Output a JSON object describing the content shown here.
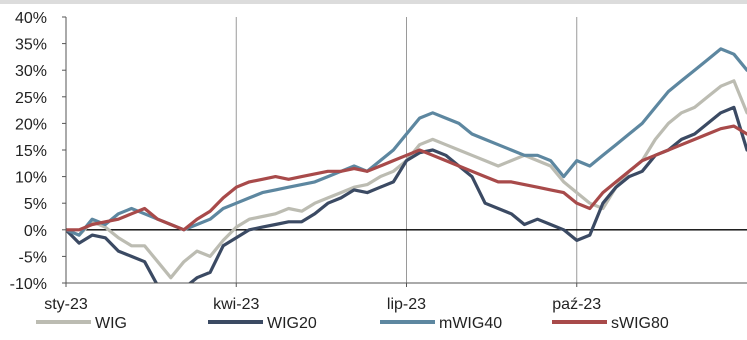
{
  "chart_data": {
    "type": "line",
    "title": "",
    "xlabel": "",
    "ylabel": "",
    "ylim": [
      -10,
      40
    ],
    "y_ticks": [
      -10,
      -5,
      0,
      5,
      10,
      15,
      20,
      25,
      30,
      35,
      40
    ],
    "y_tick_labels": [
      "-10%",
      "-5%",
      "0%",
      "5%",
      "10%",
      "15%",
      "20%",
      "25%",
      "30%",
      "35%",
      "40%"
    ],
    "x_range": [
      0,
      52
    ],
    "x_ticks": [
      {
        "x": 0,
        "label": "sty-23"
      },
      {
        "x": 13,
        "label": "kwi-23"
      },
      {
        "x": 26,
        "label": "lip-23"
      },
      {
        "x": 39,
        "label": "paź-23"
      }
    ],
    "grid": "vertical at x ticks",
    "legend_position": "bottom",
    "zero_line": true,
    "series": [
      {
        "name": "WIG",
        "color": "#bcbcb2",
        "values": [
          0,
          -1,
          1.5,
          0.5,
          -1.5,
          -3,
          -3,
          -6,
          -9,
          -6,
          -4,
          -5,
          -2,
          0.5,
          2,
          2.5,
          3,
          4,
          3.5,
          5,
          6,
          7,
          8,
          8.5,
          10,
          11,
          13,
          16,
          17,
          16,
          15,
          14,
          13,
          12,
          13,
          14,
          13,
          12,
          9,
          7,
          5,
          4,
          8,
          11,
          13,
          17,
          20,
          22,
          23,
          25,
          27,
          28,
          22
        ]
      },
      {
        "name": "WIG20",
        "color": "#3b4a63",
        "values": [
          0,
          -2.5,
          -1,
          -1.5,
          -4,
          -5,
          -6,
          -10.5,
          -13,
          -11,
          -9,
          -8,
          -3,
          -1.5,
          0,
          0.5,
          1,
          1.5,
          1.5,
          3,
          5,
          6,
          7.5,
          7,
          8,
          9,
          13,
          14.5,
          15,
          14,
          12,
          10,
          5,
          4,
          3,
          1,
          2,
          1,
          0,
          -2,
          -1,
          5,
          8,
          10,
          11,
          14,
          15,
          17,
          18,
          20,
          22,
          23,
          15
        ]
      },
      {
        "name": "mWIG40",
        "color": "#5d87a0",
        "values": [
          0,
          -1,
          2,
          1,
          3,
          4,
          3,
          2,
          1,
          0,
          1,
          2,
          4,
          5,
          6,
          7,
          7.5,
          8,
          8.5,
          9,
          10,
          11,
          12,
          11,
          13,
          15,
          18,
          21,
          22,
          21,
          20,
          18,
          17,
          16,
          15,
          14,
          14,
          13,
          10,
          13,
          12,
          14,
          16,
          18,
          20,
          23,
          26,
          28,
          30,
          32,
          34,
          33,
          30
        ]
      },
      {
        "name": "sWIG80",
        "color": "#a84a4a",
        "values": [
          0,
          0,
          1,
          1.5,
          2,
          3,
          4,
          2,
          1,
          0,
          2,
          3.5,
          6,
          8,
          9,
          9.5,
          10,
          9.5,
          10,
          10.5,
          11,
          11,
          11.5,
          11,
          12,
          13,
          14,
          15,
          14,
          13,
          12,
          11,
          10,
          9,
          9,
          8.5,
          8,
          7.5,
          7,
          5,
          4,
          7,
          9,
          11,
          13,
          14,
          15,
          16,
          17,
          18,
          19,
          19.5,
          18
        ]
      }
    ]
  }
}
